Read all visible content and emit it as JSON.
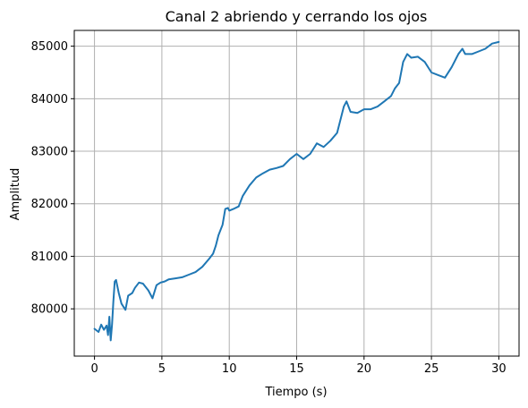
{
  "chart_data": {
    "type": "line",
    "title": "Canal 2 abriendo y cerrando los ojos",
    "xlabel": "Tiempo (s)",
    "ylabel": "Amplitud",
    "xlim": [
      -1.5,
      31.5
    ],
    "ylim": [
      79100,
      85300
    ],
    "xticks": [
      0,
      5,
      10,
      15,
      20,
      25,
      30
    ],
    "xtick_labels": [
      "0",
      "5",
      "10",
      "15",
      "20",
      "25",
      "30"
    ],
    "yticks": [
      80000,
      81000,
      82000,
      83000,
      84000,
      85000
    ],
    "ytick_labels": [
      "80000",
      "81000",
      "82000",
      "83000",
      "84000",
      "85000"
    ],
    "grid": true,
    "series": [
      {
        "color": "#1f77b4",
        "x": [
          0,
          0.3,
          0.5,
          0.7,
          0.9,
          1.0,
          1.1,
          1.2,
          1.3,
          1.4,
          1.5,
          1.6,
          1.8,
          2.0,
          2.3,
          2.5,
          2.8,
          3.0,
          3.3,
          3.6,
          4.0,
          4.3,
          4.6,
          4.9,
          5.2,
          5.5,
          6.0,
          6.5,
          7.0,
          7.5,
          8.0,
          8.5,
          8.8,
          9.0,
          9.2,
          9.5,
          9.7,
          9.9,
          10.0,
          10.3,
          10.7,
          11.0,
          11.5,
          12.0,
          12.5,
          13.0,
          13.5,
          14.0,
          14.5,
          15.0,
          15.5,
          16.0,
          16.5,
          17.0,
          17.5,
          18.0,
          18.5,
          18.7,
          19.0,
          19.5,
          20.0,
          20.5,
          21.0,
          21.5,
          22.0,
          22.3,
          22.6,
          22.9,
          23.2,
          23.5,
          24.0,
          24.5,
          25.0,
          25.5,
          26.0,
          26.5,
          27.0,
          27.3,
          27.5,
          28.0,
          28.5,
          29.0,
          29.5,
          30.0
        ],
        "y": [
          79620,
          79560,
          79700,
          79600,
          79680,
          79500,
          79850,
          79400,
          79700,
          80150,
          80520,
          80550,
          80300,
          80100,
          79980,
          80250,
          80300,
          80400,
          80500,
          80480,
          80350,
          80200,
          80450,
          80500,
          80520,
          80560,
          80580,
          80600,
          80650,
          80700,
          80800,
          80950,
          81050,
          81200,
          81400,
          81600,
          81900,
          81920,
          81870,
          81900,
          81950,
          82150,
          82350,
          82500,
          82580,
          82650,
          82680,
          82720,
          82850,
          82950,
          82850,
          82950,
          83150,
          83080,
          83200,
          83350,
          83850,
          83950,
          83750,
          83730,
          83800,
          83800,
          83850,
          83950,
          84050,
          84200,
          84300,
          84700,
          84850,
          84780,
          84800,
          84700,
          84500,
          84450,
          84400,
          84600,
          84850,
          84950,
          84850,
          84850,
          84900,
          84950,
          85050,
          85080
        ]
      }
    ]
  }
}
